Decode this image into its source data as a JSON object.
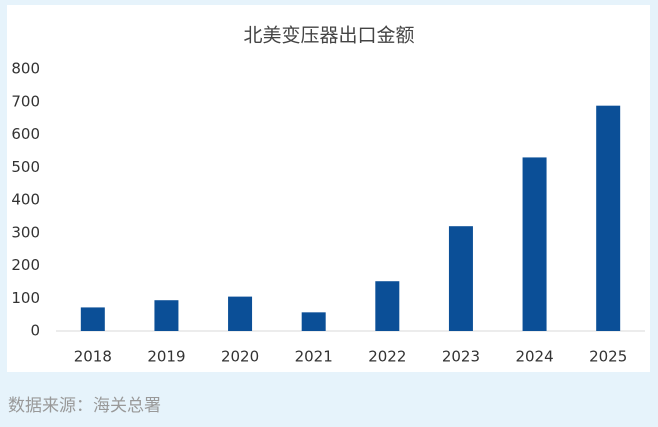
{
  "chart_data": {
    "type": "bar",
    "title": "北美变压器出口金额",
    "categories": [
      "2018",
      "2019",
      "2020",
      "2021",
      "2022",
      "2023",
      "2024",
      "2025"
    ],
    "values": [
      72,
      94,
      105,
      57,
      152,
      320,
      530,
      688
    ],
    "color": "#0b4f97",
    "ylim": [
      0,
      800
    ],
    "yticks": [
      0,
      100,
      200,
      300,
      400,
      500,
      600,
      700,
      800
    ],
    "grid": false,
    "source": "数据来源：海关总署"
  }
}
